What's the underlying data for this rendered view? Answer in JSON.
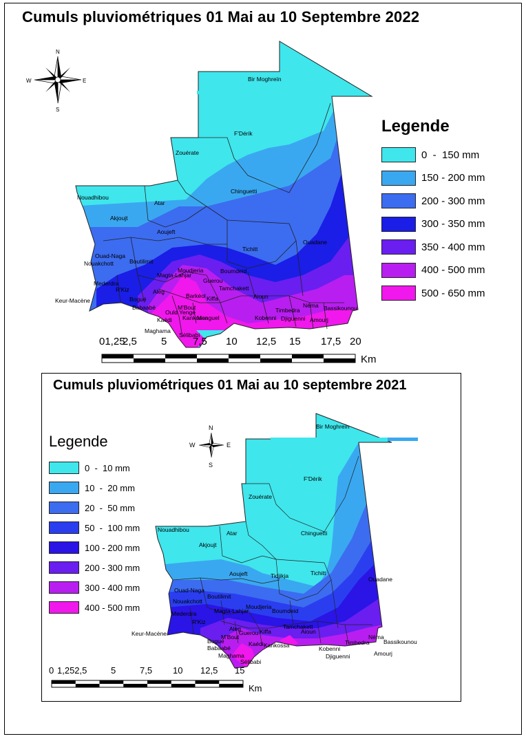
{
  "map_top": {
    "title": "Cumuls pluviométriques 01 Mai au 10 Septembre 2022",
    "legend_title": "Legende",
    "legend": [
      {
        "label": "0  -  150 mm",
        "color": "#3fe6ec"
      },
      {
        "label": "150 - 200 mm",
        "color": "#3aa8f0"
      },
      {
        "label": "200 - 300 mm",
        "color": "#3c6cf0"
      },
      {
        "label": "300 - 350 mm",
        "color": "#1a1ee6"
      },
      {
        "label": "350 - 400 mm",
        "color": "#6a1ef0"
      },
      {
        "label": "400 - 500 mm",
        "color": "#b81ef0"
      },
      {
        "label": "500 - 650 mm",
        "color": "#f018ec"
      }
    ],
    "scale_labels": [
      "01,25",
      "2,5",
      "5",
      "7,5",
      "10",
      "12,5",
      "15",
      "17,5",
      "20"
    ],
    "scale_unit": "Km",
    "compass": {
      "n": "N",
      "s": "S",
      "e": "E",
      "w": "W"
    },
    "places": [
      "Bir Moghreïn",
      "F'Dérik",
      "Zouérate",
      "Chinguetti",
      "Nouadhibou",
      "Atar",
      "Akjoujt",
      "Aoujeft",
      "Ouadane",
      "Tichitt",
      "Ouad-Naga",
      "Nouakchott",
      "Boutilimit",
      "Mederdra",
      "R'Kiz",
      "Keur-Macène",
      "Aleg",
      "Moudjeria",
      "Boumdeid",
      "Tamchakett",
      "Aioun",
      "Néma",
      "Bassikounou",
      "Amourj",
      "Bogué",
      "Babaabé",
      "Guerou",
      "Kiffa",
      "Magta-Lahjar",
      "Kankossa",
      "Maghama",
      "Sélibabi",
      "Timbedra",
      "Djiguenni",
      "Kobenni",
      "Ould Yengé",
      "Kaédi",
      "Barkéol",
      "M'Bout",
      "Monguel"
    ]
  },
  "map_bottom": {
    "title": "Cumuls pluviométriques 01 Mai au 10 septembre 2021",
    "legend_title": "Legende",
    "legend": [
      {
        "label": "0  -  10 mm",
        "color": "#3fe6ec"
      },
      {
        "label": "10  -  20 mm",
        "color": "#3aa8f0"
      },
      {
        "label": "20  -  50 mm",
        "color": "#3c6cf0"
      },
      {
        "label": "50  -  100 mm",
        "color": "#2a3ef0"
      },
      {
        "label": "100 - 200 mm",
        "color": "#2a14e6"
      },
      {
        "label": "200 - 300 mm",
        "color": "#6a1ef0"
      },
      {
        "label": "300 - 400 mm",
        "color": "#b81ef0"
      },
      {
        "label": "400 - 500 mm",
        "color": "#f018ec"
      }
    ],
    "scale_labels": [
      "0",
      "1,252,5",
      "5",
      "7,5",
      "10",
      "12,5",
      "15"
    ],
    "scale_unit": "Km",
    "compass": {
      "n": "N",
      "s": "S",
      "e": "E",
      "w": "W"
    },
    "places": [
      "Bir Moghreïn",
      "F'Dérik",
      "Zouérate",
      "Chinguetti",
      "Nouadhibou",
      "Atar",
      "Akjoujt",
      "Aoujeft",
      "Ouadane",
      "Tidjikja",
      "Tichitt",
      "Ouad-Naga",
      "Nouakchott",
      "Boutilimit",
      "Magta-Lahjar",
      "Moudjeria",
      "Boumdeid",
      "Mederdra",
      "R'Kiz",
      "Keur-Macène",
      "Aleg",
      "Kiffa",
      "Tamchakett",
      "Aioun",
      "Néma",
      "Bassikounou",
      "Amourj",
      "Timbedra",
      "Kobenni",
      "Djiguenni",
      "Bogué",
      "Babaabé",
      "Maghama",
      "Sélibabi",
      "Kankossa",
      "Guerou",
      "Kaédi",
      "M'Bout"
    ]
  }
}
